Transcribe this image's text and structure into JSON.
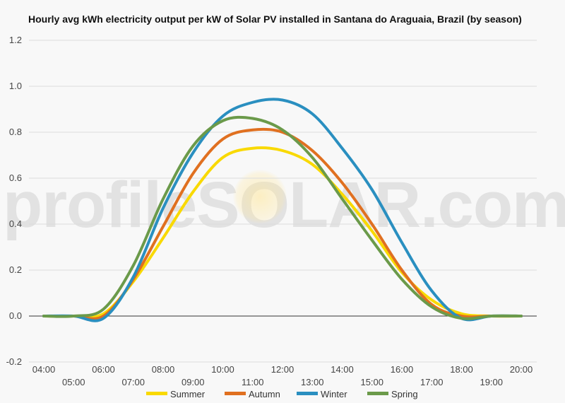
{
  "watermark": "profileSOLAR.com",
  "chart_data": {
    "type": "line",
    "title": "Hourly avg kWh electricity output per kW of Solar PV installed in Santana do Araguaia, Brazil (by season)",
    "xlabel": "",
    "ylabel": "",
    "x": [
      "04:00",
      "05:00",
      "06:00",
      "07:00",
      "08:00",
      "09:00",
      "10:00",
      "11:00",
      "12:00",
      "13:00",
      "14:00",
      "15:00",
      "16:00",
      "17:00",
      "18:00",
      "19:00",
      "20:00"
    ],
    "ylim": [
      -0.2,
      1.2
    ],
    "yticks": [
      -0.2,
      0.0,
      0.2,
      0.4,
      0.6,
      0.8,
      1.0,
      1.2
    ],
    "ytick_labels": [
      "-0.2",
      "0.0",
      "0.2",
      "0.4",
      "0.6",
      "0.8",
      "1.0",
      "1.2"
    ],
    "grid": true,
    "legend_position": "bottom",
    "series": [
      {
        "name": "Summer",
        "color": "#f9d900",
        "values": [
          0.0,
          0.0,
          0.01,
          0.15,
          0.34,
          0.54,
          0.69,
          0.73,
          0.72,
          0.66,
          0.53,
          0.37,
          0.19,
          0.07,
          0.01,
          0.0,
          0.0
        ]
      },
      {
        "name": "Autumn",
        "color": "#e07020",
        "values": [
          0.0,
          0.0,
          0.0,
          0.16,
          0.39,
          0.62,
          0.77,
          0.81,
          0.8,
          0.72,
          0.58,
          0.4,
          0.2,
          0.05,
          0.0,
          0.0,
          0.0
        ]
      },
      {
        "name": "Winter",
        "color": "#2a8fc0",
        "values": [
          0.0,
          0.0,
          -0.01,
          0.17,
          0.47,
          0.71,
          0.87,
          0.93,
          0.94,
          0.88,
          0.73,
          0.55,
          0.32,
          0.11,
          -0.01,
          0.0,
          0.0
        ]
      },
      {
        "name": "Spring",
        "color": "#6b9a4a",
        "values": [
          0.0,
          0.0,
          0.03,
          0.22,
          0.51,
          0.74,
          0.85,
          0.86,
          0.81,
          0.69,
          0.51,
          0.33,
          0.16,
          0.04,
          -0.01,
          0.0,
          0.0
        ]
      }
    ]
  }
}
